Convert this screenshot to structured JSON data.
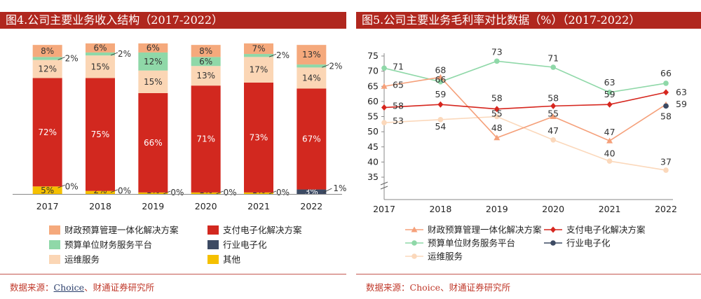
{
  "chart_data": [
    {
      "type": "bar",
      "title": "图4.公司主要业务收入结构（2017-2022）",
      "subtype": "stacked-100",
      "categories": [
        "2017",
        "2018",
        "2019",
        "2020",
        "2021",
        "2022"
      ],
      "series": [
        {
          "name": "其他",
          "color": "#f5c000",
          "values": [
            5,
            2,
            1,
            1,
            1,
            0
          ],
          "labels": [
            "5%",
            "2%",
            "1%",
            "1%",
            "1%",
            ""
          ]
        },
        {
          "name": "行业电子化",
          "color": "#3c4a63",
          "values": [
            0,
            0,
            0,
            0,
            0,
            3
          ],
          "labels": [
            "0%",
            "0%",
            "0%",
            "0%",
            "0%",
            "3%"
          ]
        },
        {
          "name": "支付电子化解决方案",
          "color": "#d2281f",
          "values": [
            72,
            75,
            66,
            71,
            73,
            67
          ],
          "labels": [
            "72%",
            "75%",
            "66%",
            "71%",
            "73%",
            "67%"
          ]
        },
        {
          "name": "运维服务",
          "color": "#fbd6b5",
          "values": [
            12,
            15,
            15,
            13,
            17,
            14
          ],
          "labels": [
            "12%",
            "15%",
            "15%",
            "13%",
            "17%",
            "14%"
          ]
        },
        {
          "name": "预算单位财务服务平台",
          "color": "#8fd8a8",
          "values": [
            2,
            2,
            12,
            6,
            2,
            2
          ],
          "labels": [
            "2%",
            "2%",
            "12%",
            "6%",
            "2%",
            "2%"
          ]
        },
        {
          "name": "财政预算管理一体化解决方案",
          "color": "#f5a97c",
          "values": [
            8,
            6,
            6,
            8,
            7,
            13
          ],
          "labels": [
            "8%",
            "6%",
            "6%",
            "8%",
            "7%",
            "13%"
          ]
        }
      ],
      "extra_labels": [
        {
          "category": "2022",
          "text": "1%"
        }
      ],
      "ylim": [
        0,
        100
      ],
      "legend_placement": "bottom",
      "legend": [
        "财政预算管理一体化解决方案",
        "支付电子化解决方案",
        "预算单位财务服务平台",
        "行业电子化",
        "运维服务",
        "其他"
      ]
    },
    {
      "type": "line",
      "title": "图5.公司主要业务毛利率对比数据（%）（2017-2022）",
      "x": [
        "2017",
        "2018",
        "2019",
        "2020",
        "2021",
        "2022"
      ],
      "ylim": [
        32,
        75
      ],
      "yticks": [
        35,
        40,
        45,
        50,
        55,
        60,
        65,
        70,
        75
      ],
      "y_break": true,
      "grid": false,
      "series": [
        {
          "name": "财政预算管理一体化解决方案",
          "color": "#f5a07a",
          "marker": "triangle",
          "values": [
            65,
            68,
            48,
            55,
            47,
            59
          ]
        },
        {
          "name": "支付电子化解决方案",
          "color": "#d6261e",
          "marker": "diamond",
          "values": [
            58,
            59,
            57.5,
            58.5,
            59,
            63
          ]
        },
        {
          "name": "预算单位财务服务平台",
          "color": "#8fd8a8",
          "marker": "circle",
          "values": [
            71,
            66.5,
            73.3,
            71.3,
            63,
            66
          ]
        },
        {
          "name": "行业电子化",
          "color": "#3c4a63",
          "marker": "circle",
          "values": [
            null,
            null,
            null,
            null,
            null,
            58.5
          ]
        },
        {
          "name": "运维服务",
          "color": "#fbd8bb",
          "marker": "circle",
          "values": [
            53,
            54,
            55,
            47.3,
            40.3,
            37.3
          ]
        }
      ],
      "data_labels": [
        {
          "x": "2017",
          "y": 71,
          "text": "71"
        },
        {
          "x": "2017",
          "y": 65,
          "text": "65"
        },
        {
          "x": "2017",
          "y": 58,
          "text": "58"
        },
        {
          "x": "2017",
          "y": 53,
          "text": "53"
        },
        {
          "x": "2018",
          "y": 68,
          "text": "68"
        },
        {
          "x": "2018",
          "y": 66,
          "text": "66"
        },
        {
          "x": "2018",
          "y": 59,
          "text": "59"
        },
        {
          "x": "2018",
          "y": 54,
          "text": "54"
        },
        {
          "x": "2019",
          "y": 73,
          "text": "73"
        },
        {
          "x": "2019",
          "y": 58,
          "text": "58"
        },
        {
          "x": "2019",
          "y": 55,
          "text": "55"
        },
        {
          "x": "2019",
          "y": 48,
          "text": "48"
        },
        {
          "x": "2020",
          "y": 71,
          "text": "71"
        },
        {
          "x": "2020",
          "y": 58,
          "text": "58"
        },
        {
          "x": "2020",
          "y": 55,
          "text": "55"
        },
        {
          "x": "2020",
          "y": 47,
          "text": "47"
        },
        {
          "x": "2021",
          "y": 63,
          "text": "63"
        },
        {
          "x": "2021",
          "y": 59,
          "text": "59"
        },
        {
          "x": "2021",
          "y": 47,
          "text": "47"
        },
        {
          "x": "2021",
          "y": 40,
          "text": "40"
        },
        {
          "x": "2022",
          "y": 66,
          "text": "66"
        },
        {
          "x": "2022",
          "y": 63,
          "text": "63"
        },
        {
          "x": "2022",
          "y": 59,
          "text": "59"
        },
        {
          "x": "2022",
          "y": 58,
          "text": "58"
        },
        {
          "x": "2022",
          "y": 37,
          "text": "37"
        }
      ],
      "legend_placement": "bottom",
      "legend": [
        "财政预算管理一体化解决方案",
        "支付电子化解决方案",
        "预算单位财务服务平台",
        "行业电子化",
        "运维服务"
      ]
    }
  ],
  "sources": [
    {
      "prefix": "数据来源：",
      "link": "Choice",
      "suffix": "、财通证券研究所"
    },
    {
      "prefix": "数据来源：",
      "link": "Choice",
      "suffix": "、财通证券研究所"
    }
  ]
}
